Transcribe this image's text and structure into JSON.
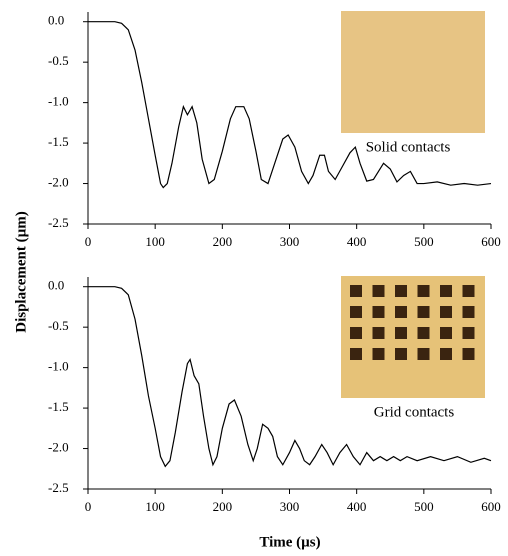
{
  "ylabel": "Displacement (µm)",
  "xlabel": "Time (µs)",
  "chart_data": [
    {
      "type": "line",
      "annotation": "Solid contacts",
      "color": "#000000",
      "x": [
        0,
        20,
        40,
        50,
        60,
        70,
        80,
        90,
        100,
        108,
        112,
        118,
        125,
        135,
        142,
        148,
        155,
        162,
        170,
        180,
        188,
        200,
        212,
        220,
        232,
        240,
        250,
        258,
        268,
        278,
        290,
        298,
        308,
        318,
        328,
        335,
        345,
        352,
        358,
        368,
        378,
        390,
        398,
        405,
        415,
        425,
        440,
        450,
        460,
        470,
        480,
        490,
        500,
        520,
        540,
        560,
        580,
        600
      ],
      "values": [
        0,
        0,
        0,
        -0.02,
        -0.1,
        -0.35,
        -0.75,
        -1.2,
        -1.65,
        -2.0,
        -2.05,
        -2.0,
        -1.75,
        -1.3,
        -1.05,
        -1.15,
        -1.05,
        -1.25,
        -1.7,
        -2.0,
        -1.95,
        -1.6,
        -1.2,
        -1.05,
        -1.05,
        -1.2,
        -1.6,
        -1.95,
        -2.0,
        -1.75,
        -1.45,
        -1.4,
        -1.55,
        -1.85,
        -2.0,
        -1.9,
        -1.65,
        -1.65,
        -1.85,
        -1.95,
        -1.8,
        -1.62,
        -1.55,
        -1.75,
        -1.97,
        -1.95,
        -1.75,
        -1.82,
        -1.98,
        -1.9,
        -1.85,
        -2.0,
        -2.0,
        -1.98,
        -2.02,
        -2.0,
        -2.02,
        -2.0
      ],
      "xlim": [
        0,
        600
      ],
      "xticks": [
        0,
        100,
        200,
        300,
        400,
        500,
        600
      ],
      "ylim": [
        -2.5,
        0.12
      ],
      "yticks": [
        {
          "value": 0,
          "label": "0.0"
        },
        -0.5,
        {
          "value": -1,
          "label": "-1.0"
        },
        -1.5,
        {
          "value": -2,
          "label": "-2.0"
        },
        -2.5
      ]
    },
    {
      "type": "line",
      "annotation": "Grid contacts",
      "color": "#000000",
      "x": [
        0,
        20,
        40,
        50,
        60,
        70,
        80,
        90,
        100,
        108,
        115,
        122,
        130,
        140,
        148,
        152,
        158,
        165,
        172,
        180,
        186,
        192,
        200,
        210,
        218,
        228,
        238,
        246,
        252,
        260,
        268,
        275,
        282,
        290,
        300,
        308,
        315,
        322,
        330,
        338,
        348,
        356,
        365,
        375,
        385,
        395,
        405,
        415,
        425,
        435,
        445,
        455,
        465,
        475,
        490,
        510,
        530,
        550,
        570,
        590,
        600
      ],
      "values": [
        0,
        0,
        0,
        -0.02,
        -0.1,
        -0.4,
        -0.85,
        -1.35,
        -1.75,
        -2.1,
        -2.22,
        -2.15,
        -1.8,
        -1.3,
        -0.95,
        -0.9,
        -1.1,
        -1.2,
        -1.6,
        -2.0,
        -2.2,
        -2.1,
        -1.75,
        -1.45,
        -1.4,
        -1.6,
        -1.95,
        -2.15,
        -2.0,
        -1.7,
        -1.75,
        -1.85,
        -2.1,
        -2.2,
        -2.05,
        -1.9,
        -2.0,
        -2.15,
        -2.2,
        -2.1,
        -1.95,
        -2.05,
        -2.2,
        -2.05,
        -1.95,
        -2.1,
        -2.2,
        -2.05,
        -2.15,
        -2.1,
        -2.15,
        -2.1,
        -2.15,
        -2.1,
        -2.15,
        -2.1,
        -2.15,
        -2.1,
        -2.17,
        -2.12,
        -2.15
      ],
      "xlim": [
        0,
        600
      ],
      "xticks": [
        0,
        100,
        200,
        300,
        400,
        500,
        600
      ],
      "ylim": [
        -2.5,
        0.12
      ],
      "yticks": [
        {
          "value": 0,
          "label": "0.0"
        },
        -0.5,
        {
          "value": -1,
          "label": "-1.0"
        },
        -1.5,
        {
          "value": -2,
          "label": "-2.0"
        },
        -2.5
      ]
    }
  ]
}
